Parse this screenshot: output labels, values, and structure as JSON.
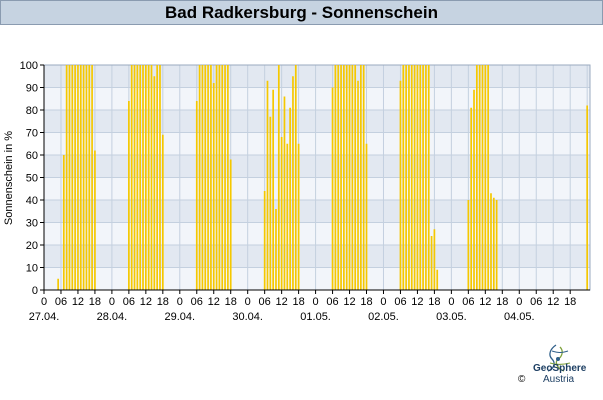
{
  "header": {
    "title": "Bad Radkersburg - Sonnenschein"
  },
  "logo": {
    "name": "GeoSphere",
    "sub": "Austria",
    "copyright": "©"
  },
  "colors": {
    "bar": "#f5c800",
    "band_dark": "#e2e8f1",
    "band_light": "#f2f5fa",
    "grid": "#ffffff"
  },
  "chart_data": {
    "type": "bar",
    "title": "Bad Radkersburg - Sonnenschein",
    "ylabel": "Sonnenschein in %",
    "xlabel": "",
    "ylim": [
      0,
      100
    ],
    "yticks": [
      0,
      10,
      20,
      30,
      40,
      50,
      60,
      70,
      80,
      90,
      100
    ],
    "xlim_hours": [
      0,
      193
    ],
    "hour_ticks_labels": [
      "0",
      "06",
      "12",
      "18"
    ],
    "days": [
      "27.04.",
      "28.04.",
      "29.04.",
      "30.04.",
      "01.05.",
      "02.05.",
      "03.05.",
      "04.05."
    ],
    "series": [
      {
        "values": [
          [
            5,
            5
          ],
          [
            7,
            60
          ],
          [
            8,
            100
          ],
          [
            9,
            100
          ],
          [
            10,
            100
          ],
          [
            11,
            100
          ],
          [
            12,
            100
          ],
          [
            13,
            100
          ],
          [
            14,
            100
          ],
          [
            15,
            100
          ],
          [
            16,
            100
          ],
          [
            17,
            100
          ],
          [
            18,
            62
          ],
          [
            30,
            84
          ],
          [
            31,
            100
          ],
          [
            32,
            100
          ],
          [
            33,
            100
          ],
          [
            34,
            100
          ],
          [
            35,
            100
          ],
          [
            36,
            100
          ],
          [
            37,
            100
          ],
          [
            38,
            100
          ],
          [
            39,
            95
          ],
          [
            40,
            100
          ],
          [
            41,
            100
          ],
          [
            42,
            69
          ],
          [
            54,
            84
          ],
          [
            55,
            100
          ],
          [
            56,
            100
          ],
          [
            57,
            100
          ],
          [
            58,
            100
          ],
          [
            59,
            100
          ],
          [
            60,
            92
          ],
          [
            61,
            100
          ],
          [
            62,
            100
          ],
          [
            63,
            100
          ],
          [
            64,
            100
          ],
          [
            65,
            100
          ],
          [
            66,
            58
          ],
          [
            78,
            44
          ],
          [
            79,
            93
          ],
          [
            80,
            77
          ],
          [
            81,
            89
          ],
          [
            82,
            36
          ],
          [
            83,
            100
          ],
          [
            84,
            68
          ],
          [
            85,
            86
          ],
          [
            86,
            65
          ],
          [
            87,
            81
          ],
          [
            88,
            95
          ],
          [
            89,
            100
          ],
          [
            90,
            65
          ],
          [
            102,
            90
          ],
          [
            103,
            100
          ],
          [
            104,
            100
          ],
          [
            105,
            100
          ],
          [
            106,
            100
          ],
          [
            107,
            100
          ],
          [
            108,
            100
          ],
          [
            109,
            100
          ],
          [
            110,
            100
          ],
          [
            111,
            93
          ],
          [
            112,
            100
          ],
          [
            113,
            100
          ],
          [
            114,
            65
          ],
          [
            126,
            93
          ],
          [
            127,
            100
          ],
          [
            128,
            100
          ],
          [
            129,
            100
          ],
          [
            130,
            100
          ],
          [
            131,
            100
          ],
          [
            132,
            100
          ],
          [
            133,
            100
          ],
          [
            134,
            100
          ],
          [
            135,
            100
          ],
          [
            136,
            100
          ],
          [
            137,
            24
          ],
          [
            138,
            27
          ],
          [
            139,
            9
          ],
          [
            150,
            40
          ],
          [
            151,
            81
          ],
          [
            152,
            89
          ],
          [
            153,
            100
          ],
          [
            154,
            100
          ],
          [
            155,
            100
          ],
          [
            156,
            100
          ],
          [
            157,
            100
          ],
          [
            158,
            43
          ],
          [
            159,
            41
          ],
          [
            160,
            40
          ],
          [
            192,
            82
          ]
        ]
      }
    ]
  }
}
